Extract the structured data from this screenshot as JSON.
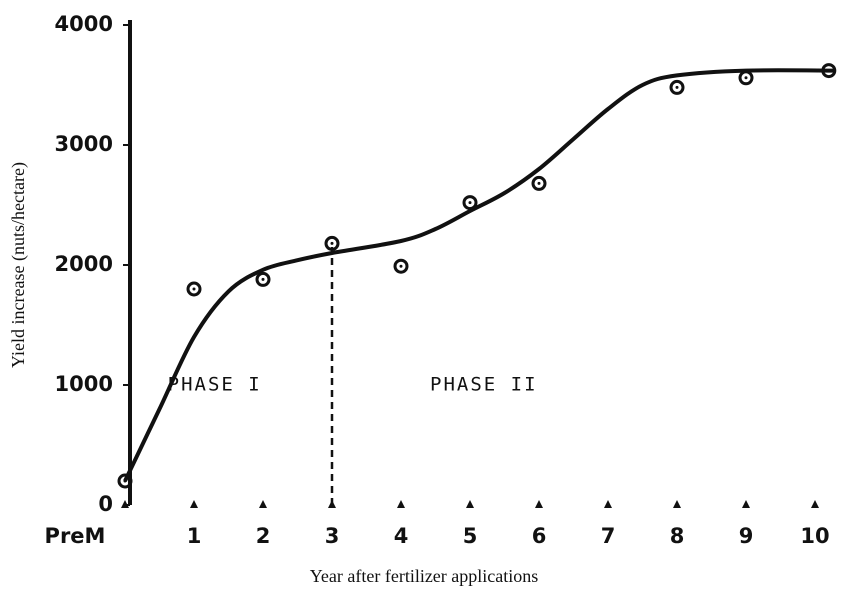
{
  "chart_data": {
    "type": "scatter",
    "xlabel": "Year after fertilizer applications",
    "ylabel": "Yield increase (nuts/hectare)",
    "xlim": [
      0,
      10.3
    ],
    "ylim": [
      0,
      4000
    ],
    "xticks": [
      {
        "value": 0,
        "label": "PreM"
      },
      1,
      2,
      3,
      4,
      5,
      6,
      7,
      8,
      9,
      10
    ],
    "yticks": [
      0,
      1000,
      2000,
      3000,
      4000
    ],
    "color": "#111111",
    "series": [
      {
        "x": [
          0,
          1,
          2,
          3,
          4,
          5,
          6,
          8,
          9,
          10.2
        ],
        "values": [
          200,
          1800,
          1880,
          2180,
          1990,
          2520,
          2680,
          3480,
          3560,
          3620
        ]
      },
      {
        "x": [
          0,
          0.5,
          1,
          1.5,
          2,
          2.5,
          3,
          4,
          4.5,
          5,
          5.5,
          6,
          6.5,
          7,
          7.5,
          8,
          9,
          10.3
        ],
        "values": [
          200,
          800,
          1400,
          1780,
          1960,
          2040,
          2100,
          2200,
          2300,
          2450,
          2600,
          2800,
          3050,
          3300,
          3500,
          3580,
          3620,
          3620
        ]
      }
    ],
    "phase_boundary": 3,
    "annotations": [
      "PHASE I",
      "PHASE II"
    ]
  }
}
